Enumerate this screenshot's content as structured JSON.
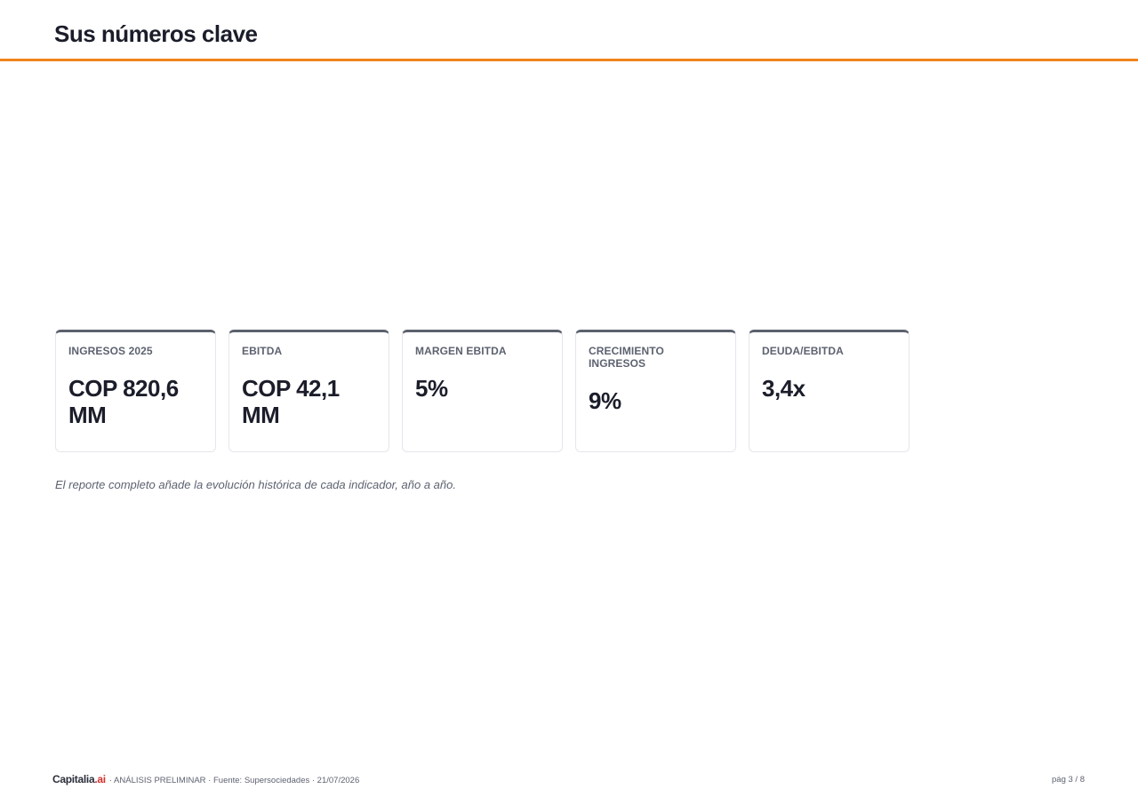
{
  "header": {
    "title": "Sus números clave",
    "accent_color": "#f0841c"
  },
  "kpis": [
    {
      "label": "INGRESOS 2025",
      "value": "COP 820,6 MM"
    },
    {
      "label": "EBITDA",
      "value": "COP 42,1 MM"
    },
    {
      "label": "MARGEN EBITDA",
      "value": "5%"
    },
    {
      "label": "CRECIMIENTO INGRESOS",
      "value": "9%"
    },
    {
      "label": "DEUDA/EBITDA",
      "value": "3,4x"
    }
  ],
  "footnote": "El reporte completo añade la evolución histórica de cada indicador, año a año.",
  "footer": {
    "brand_name": "Capitalia",
    "brand_suffix": ".ai",
    "brand_suffix_color": "#d4302b",
    "meta": "· ANÁLISIS PRELIMINAR · Fuente: Supersociedades · 21/07/2026",
    "page_number": "pág 3 / 8"
  }
}
